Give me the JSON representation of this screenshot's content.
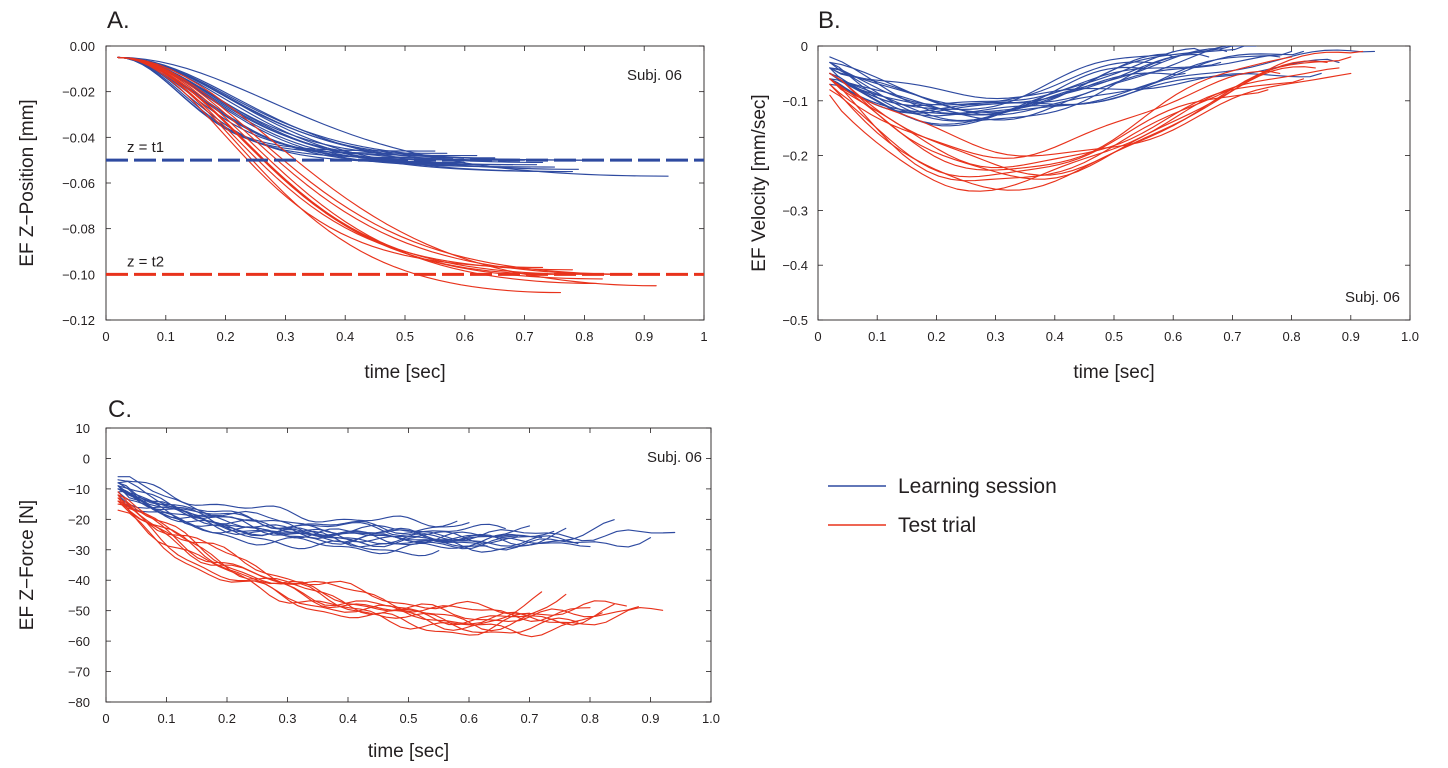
{
  "colors": {
    "learning": "#2e4aa0",
    "test": "#e8331c",
    "axis": "#231f20"
  },
  "legend": {
    "items": [
      {
        "label": "Learning session",
        "color": "#2e4aa0"
      },
      {
        "label": "Test trial",
        "color": "#e8331c"
      }
    ]
  },
  "chart_data": [
    {
      "panel": "A.",
      "type": "line",
      "xlabel": "time [sec]",
      "ylabel": "EF Z−Position [mm]",
      "xlim": [
        0,
        1
      ],
      "ylim": [
        -0.12,
        0
      ],
      "xticks": [
        0,
        0.1,
        0.2,
        0.3,
        0.4,
        0.5,
        0.6,
        0.7,
        0.8,
        0.9,
        1
      ],
      "xtick_labels": [
        "0",
        "0.1",
        "0.2",
        "0.3",
        "0.4",
        "0.5",
        "0.6",
        "0.7",
        "0.8",
        "0.9",
        "1"
      ],
      "yticks": [
        0,
        -0.02,
        -0.04,
        -0.06,
        -0.08,
        -0.1,
        -0.12
      ],
      "ytick_labels": [
        "0.00",
        "−0.02",
        "−0.04",
        "−0.06",
        "−0.08",
        "−0.10",
        "−0.12"
      ],
      "annotation": "Subj. 06",
      "legend": "none",
      "hlines": [
        {
          "label": "z = t1",
          "y": -0.05,
          "series": "learning"
        },
        {
          "label": "z = t2",
          "y": -0.1,
          "series": "test"
        }
      ],
      "groups": [
        {
          "series": "learning",
          "y0": -0.005,
          "curves": [
            {
              "end_x": 0.94,
              "end_y": -0.057,
              "k": 2.3
            },
            {
              "end_x": 0.78,
              "end_y": -0.055,
              "k": 3.0
            },
            {
              "end_x": 0.77,
              "end_y": -0.055,
              "k": 3.2
            },
            {
              "end_x": 0.71,
              "end_y": -0.053,
              "k": 3.2
            },
            {
              "end_x": 0.72,
              "end_y": -0.052,
              "k": 3.6
            },
            {
              "end_x": 0.68,
              "end_y": -0.052,
              "k": 3.5
            },
            {
              "end_x": 0.7,
              "end_y": -0.05,
              "k": 3.8
            },
            {
              "end_x": 0.66,
              "end_y": -0.052,
              "k": 4.0
            },
            {
              "end_x": 0.64,
              "end_y": -0.05,
              "k": 4.2
            },
            {
              "end_x": 0.6,
              "end_y": -0.051,
              "k": 4.6
            },
            {
              "end_x": 0.62,
              "end_y": -0.048,
              "k": 4.8
            },
            {
              "end_x": 0.58,
              "end_y": -0.049,
              "k": 5.0
            },
            {
              "end_x": 0.55,
              "end_y": -0.046,
              "k": 5.3
            },
            {
              "end_x": 0.57,
              "end_y": -0.047,
              "k": 5.6
            },
            {
              "end_x": 0.79,
              "end_y": -0.054,
              "k": 2.7
            },
            {
              "end_x": 0.75,
              "end_y": -0.053,
              "k": 4.4
            },
            {
              "end_x": 0.69,
              "end_y": -0.05,
              "k": 5.0
            },
            {
              "end_x": 0.65,
              "end_y": -0.049,
              "k": 3.0
            },
            {
              "end_x": 0.83,
              "end_y": -0.05,
              "k": 4.0
            },
            {
              "end_x": 0.73,
              "end_y": -0.051,
              "k": 2.8
            },
            {
              "end_x": 0.8,
              "end_y": -0.05,
              "k": 3.4
            }
          ]
        },
        {
          "series": "test",
          "y0": -0.005,
          "curves": [
            {
              "end_x": 0.76,
              "end_y": -0.108,
              "k": 2.4
            },
            {
              "end_x": 0.82,
              "end_y": -0.104,
              "k": 2.3
            },
            {
              "end_x": 0.92,
              "end_y": -0.105,
              "k": 2.0
            },
            {
              "end_x": 0.88,
              "end_y": -0.1,
              "k": 2.4
            },
            {
              "end_x": 0.8,
              "end_y": -0.1,
              "k": 2.6
            },
            {
              "end_x": 0.78,
              "end_y": -0.098,
              "k": 2.8
            },
            {
              "end_x": 0.86,
              "end_y": -0.1,
              "k": 2.5
            },
            {
              "end_x": 0.83,
              "end_y": -0.102,
              "k": 2.7
            },
            {
              "end_x": 0.73,
              "end_y": -0.097,
              "k": 2.9
            },
            {
              "end_x": 0.75,
              "end_y": -0.1,
              "k": 2.2
            }
          ]
        }
      ]
    },
    {
      "panel": "B.",
      "type": "line",
      "xlabel": "time [sec]",
      "ylabel": "EF Velocity [mm/sec]",
      "xlim": [
        0,
        1
      ],
      "ylim": [
        -0.5,
        0
      ],
      "xticks": [
        0,
        0.1,
        0.2,
        0.3,
        0.4,
        0.5,
        0.6,
        0.7,
        0.8,
        0.9,
        1
      ],
      "xtick_labels": [
        "0",
        "0.1",
        "0.2",
        "0.3",
        "0.4",
        "0.5",
        "0.6",
        "0.7",
        "0.8",
        "0.9",
        "1.0"
      ],
      "yticks": [
        0,
        -0.1,
        -0.2,
        -0.3,
        -0.4,
        -0.5
      ],
      "ytick_labels": [
        "0",
        "−0.1",
        "−0.2",
        "−0.3",
        "−0.4",
        "−0.5"
      ],
      "annotation": "Subj. 06",
      "legend": "none",
      "groups": [
        {
          "series": "learning",
          "curves": [
            {
              "start_y": -0.02,
              "min_x": 0.25,
              "min_y": -0.12,
              "end_x": 0.94,
              "end_y": -0.01
            },
            {
              "start_y": -0.03,
              "min_x": 0.22,
              "min_y": -0.13,
              "end_x": 0.7,
              "end_y": 0.0
            },
            {
              "start_y": -0.04,
              "min_x": 0.2,
              "min_y": -0.12,
              "end_x": 0.6,
              "end_y": -0.01
            },
            {
              "start_y": -0.05,
              "min_x": 0.24,
              "min_y": -0.13,
              "end_x": 0.65,
              "end_y": -0.01
            },
            {
              "start_y": -0.04,
              "min_x": 0.28,
              "min_y": -0.14,
              "end_x": 0.72,
              "end_y": 0.0
            },
            {
              "start_y": -0.06,
              "min_x": 0.18,
              "min_y": -0.12,
              "end_x": 0.58,
              "end_y": -0.03
            },
            {
              "start_y": -0.03,
              "min_x": 0.3,
              "min_y": -0.12,
              "end_x": 0.82,
              "end_y": -0.01
            },
            {
              "start_y": -0.05,
              "min_x": 0.21,
              "min_y": -0.14,
              "end_x": 0.66,
              "end_y": -0.02
            },
            {
              "start_y": -0.04,
              "min_x": 0.26,
              "min_y": -0.11,
              "end_x": 0.78,
              "end_y": -0.02
            },
            {
              "start_y": -0.06,
              "min_x": 0.23,
              "min_y": -0.13,
              "end_x": 0.55,
              "end_y": -0.04
            },
            {
              "start_y": -0.05,
              "min_x": 0.27,
              "min_y": -0.12,
              "end_x": 0.69,
              "end_y": -0.01
            },
            {
              "start_y": -0.03,
              "min_x": 0.32,
              "min_y": -0.11,
              "end_x": 0.88,
              "end_y": -0.03
            },
            {
              "start_y": -0.07,
              "min_x": 0.19,
              "min_y": -0.12,
              "end_x": 0.62,
              "end_y": -0.05
            },
            {
              "start_y": -0.05,
              "min_x": 0.29,
              "min_y": -0.13,
              "end_x": 0.74,
              "end_y": 0.0
            },
            {
              "start_y": -0.04,
              "min_x": 0.34,
              "min_y": -0.12,
              "end_x": 0.8,
              "end_y": -0.01
            },
            {
              "start_y": -0.06,
              "min_x": 0.24,
              "min_y": -0.14,
              "end_x": 0.6,
              "end_y": -0.02
            },
            {
              "start_y": -0.05,
              "min_x": 0.2,
              "min_y": -0.11,
              "end_x": 0.68,
              "end_y": -0.03
            },
            {
              "start_y": -0.04,
              "min_x": 0.3,
              "min_y": -0.09,
              "end_x": 0.85,
              "end_y": -0.05
            }
          ]
        },
        {
          "series": "test",
          "curves": [
            {
              "start_y": -0.06,
              "min_x": 0.27,
              "min_y": -0.25,
              "end_x": 0.92,
              "end_y": -0.01
            },
            {
              "start_y": -0.07,
              "min_x": 0.3,
              "min_y": -0.26,
              "end_x": 0.9,
              "end_y": -0.02
            },
            {
              "start_y": -0.09,
              "min_x": 0.25,
              "min_y": -0.26,
              "end_x": 0.88,
              "end_y": -0.04
            },
            {
              "start_y": -0.06,
              "min_x": 0.32,
              "min_y": -0.23,
              "end_x": 0.8,
              "end_y": -0.02
            },
            {
              "start_y": -0.05,
              "min_x": 0.35,
              "min_y": -0.24,
              "end_x": 0.86,
              "end_y": -0.03
            },
            {
              "start_y": -0.07,
              "min_x": 0.3,
              "min_y": -0.2,
              "end_x": 0.78,
              "end_y": -0.05
            },
            {
              "start_y": -0.06,
              "min_x": 0.33,
              "min_y": -0.22,
              "end_x": 0.82,
              "end_y": -0.06
            },
            {
              "start_y": -0.08,
              "min_x": 0.28,
              "min_y": -0.24,
              "end_x": 0.76,
              "end_y": -0.08
            },
            {
              "start_y": -0.05,
              "min_x": 0.38,
              "min_y": -0.23,
              "end_x": 0.84,
              "end_y": -0.04
            },
            {
              "start_y": -0.06,
              "min_x": 0.4,
              "min_y": -0.2,
              "end_x": 0.9,
              "end_y": -0.05
            }
          ]
        }
      ]
    },
    {
      "panel": "C.",
      "type": "line",
      "xlabel": "time [sec]",
      "ylabel": "EF Z−Force [N]",
      "xlim": [
        0,
        1
      ],
      "ylim": [
        -80,
        10
      ],
      "xticks": [
        0,
        0.1,
        0.2,
        0.3,
        0.4,
        0.5,
        0.6,
        0.7,
        0.8,
        0.9,
        1
      ],
      "xtick_labels": [
        "0",
        "0.1",
        "0.2",
        "0.3",
        "0.4",
        "0.5",
        "0.6",
        "0.7",
        "0.8",
        "0.9",
        "1.0"
      ],
      "yticks": [
        10,
        0,
        -10,
        -20,
        -30,
        -40,
        -50,
        -60,
        -70,
        -80
      ],
      "ytick_labels": [
        "10",
        "0",
        "−10",
        "−20",
        "−30",
        "−40",
        "−50",
        "−60",
        "−70",
        "−80"
      ],
      "annotation": "Subj. 06",
      "legend": "right",
      "groups": [
        {
          "series": "learning",
          "curves": [
            {
              "start_y": -6,
              "plateau_y": -25,
              "end_x": 0.94,
              "end_y": -25,
              "k": 5
            },
            {
              "start_y": -8,
              "plateau_y": -27,
              "end_x": 0.84,
              "end_y": -22,
              "k": 6
            },
            {
              "start_y": -9,
              "plateau_y": -28,
              "end_x": 0.9,
              "end_y": -26,
              "k": 6
            },
            {
              "start_y": -7,
              "plateau_y": -22,
              "end_x": 0.58,
              "end_y": -20,
              "k": 4
            },
            {
              "start_y": -10,
              "plateau_y": -26,
              "end_x": 0.72,
              "end_y": -24,
              "k": 7
            },
            {
              "start_y": -9,
              "plateau_y": -29,
              "end_x": 0.76,
              "end_y": -25,
              "k": 5
            },
            {
              "start_y": -11,
              "plateau_y": -27,
              "end_x": 0.7,
              "end_y": -26,
              "k": 8
            },
            {
              "start_y": -8,
              "plateau_y": -24,
              "end_x": 0.66,
              "end_y": -23,
              "k": 6
            },
            {
              "start_y": -12,
              "plateau_y": -30,
              "end_x": 0.63,
              "end_y": -28,
              "k": 7
            },
            {
              "start_y": -10,
              "plateau_y": -25,
              "end_x": 0.68,
              "end_y": -27,
              "k": 9
            },
            {
              "start_y": -9,
              "plateau_y": -31,
              "end_x": 0.55,
              "end_y": -30,
              "k": 6
            },
            {
              "start_y": -11,
              "plateau_y": -26,
              "end_x": 0.74,
              "end_y": -25,
              "k": 8
            },
            {
              "start_y": -8,
              "plateau_y": -28,
              "end_x": 0.8,
              "end_y": -27,
              "k": 5
            },
            {
              "start_y": -10,
              "plateau_y": -23,
              "end_x": 0.6,
              "end_y": -22,
              "k": 7
            },
            {
              "start_y": -12,
              "plateau_y": -27,
              "end_x": 0.78,
              "end_y": -28,
              "k": 6
            },
            {
              "start_y": -9,
              "plateau_y": -26,
              "end_x": 0.7,
              "end_y": -24,
              "k": 5
            }
          ]
        },
        {
          "series": "test",
          "curves": [
            {
              "start_y": -17,
              "plateau_y": -53,
              "end_x": 0.92,
              "end_y": -50,
              "k": 5
            },
            {
              "start_y": -14,
              "plateau_y": -56,
              "end_x": 0.82,
              "end_y": -52,
              "k": 4
            },
            {
              "start_y": -13,
              "plateau_y": -52,
              "end_x": 0.88,
              "end_y": -47,
              "k": 4
            },
            {
              "start_y": -12,
              "plateau_y": -55,
              "end_x": 0.72,
              "end_y": -45,
              "k": 3.5
            },
            {
              "start_y": -14,
              "plateau_y": -50,
              "end_x": 0.86,
              "end_y": -48,
              "k": 3
            },
            {
              "start_y": -12,
              "plateau_y": -54,
              "end_x": 0.76,
              "end_y": -46,
              "k": 3.5
            },
            {
              "start_y": -15,
              "plateau_y": -57,
              "end_x": 0.7,
              "end_y": -52,
              "k": 4
            },
            {
              "start_y": -13,
              "plateau_y": -51,
              "end_x": 0.8,
              "end_y": -50,
              "k": 3
            },
            {
              "start_y": -11,
              "plateau_y": -56,
              "end_x": 0.78,
              "end_y": -54,
              "k": 3.2
            },
            {
              "start_y": -14,
              "plateau_y": -53,
              "end_x": 0.84,
              "end_y": -49,
              "k": 3.8
            }
          ]
        }
      ]
    }
  ]
}
